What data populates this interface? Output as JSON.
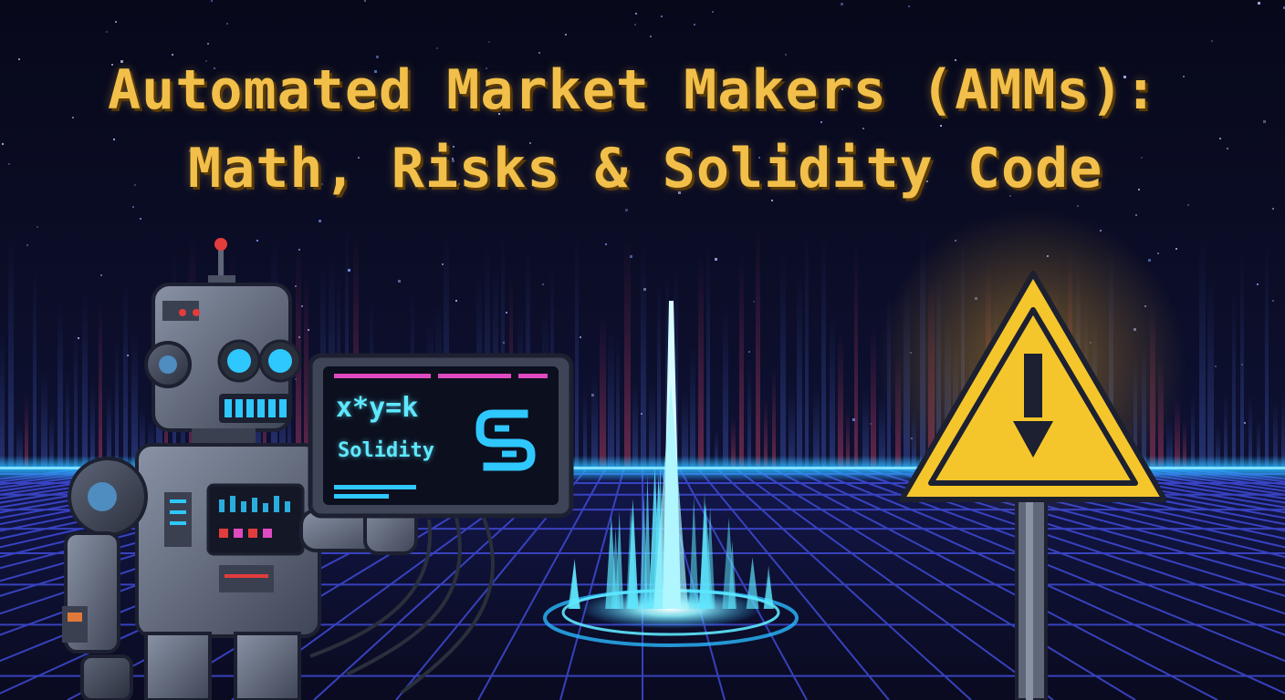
{
  "title": {
    "line1": "Automated Market Makers (AMMs):",
    "line2": "Math, Risks & Solidity Code"
  },
  "monitor": {
    "formula": "x*y=k",
    "language": "Solidity",
    "logo_icon": "solidity-s-logo-icon"
  },
  "colors": {
    "title": "#f2c04a",
    "grid": "#3f4bd6",
    "horizon_glow": "#2ab8ff",
    "spike": "#5fe8ff",
    "warning": "#f5c62c",
    "robot_eye": "#2ec8ff"
  },
  "icons": {
    "robot": "robot-icon",
    "warning": "warning-triangle-icon",
    "spike": "energy-spike-icon"
  }
}
